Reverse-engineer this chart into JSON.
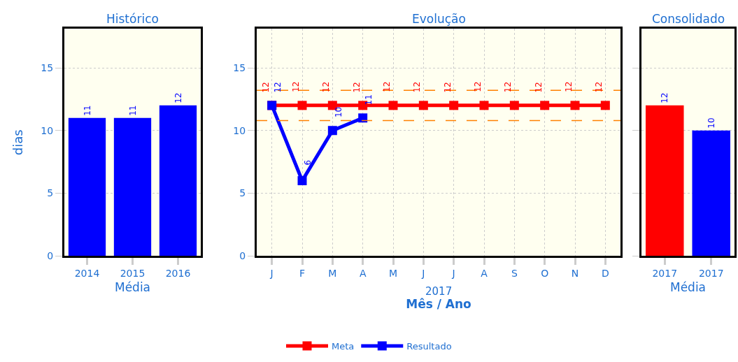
{
  "chart_data": [
    {
      "type": "bar",
      "title": "Histórico",
      "xlabel": "Média",
      "ylabel": "dias",
      "categories": [
        "2014",
        "2015",
        "2016"
      ],
      "values": [
        11,
        11,
        12
      ],
      "color": "#0000ff",
      "ylim": [
        0,
        18.1
      ],
      "yticks": [
        0,
        5,
        10,
        15
      ],
      "grid": "y",
      "data_labels": true
    },
    {
      "type": "line",
      "title": "Evolução",
      "xlabel": "Mês / Ano",
      "annotations": [
        "2017"
      ],
      "categories": [
        "J",
        "F",
        "M",
        "A",
        "M",
        "J",
        "J",
        "A",
        "S",
        "O",
        "N",
        "D"
      ],
      "series": [
        {
          "name": "Meta",
          "color": "#ff0000",
          "values": [
            12,
            12,
            12,
            12,
            12,
            12,
            12,
            12,
            12,
            12,
            12,
            12
          ]
        },
        {
          "name": "Resultado",
          "color": "#0000ff",
          "values": [
            12,
            6,
            10,
            11,
            null,
            null,
            null,
            null,
            null,
            null,
            null,
            null
          ]
        }
      ],
      "ylim": [
        0,
        18.1
      ],
      "yticks": [
        0,
        5,
        10,
        15
      ],
      "grid": true,
      "marker": "square",
      "line_style": "solid",
      "data_labels": true,
      "legend": "bottom",
      "ref_lines": [
        {
          "axis": "y",
          "value": 13.2,
          "color": "#ff8000",
          "line_style": "dashed"
        },
        {
          "axis": "y",
          "value": 10.8,
          "color": "#ff8000",
          "line_style": "dashed"
        }
      ]
    },
    {
      "type": "bar",
      "title": "Consolidado",
      "xlabel": "Média",
      "categories": [
        "2017",
        "2017"
      ],
      "values": [
        12,
        10
      ],
      "colors": [
        "#ff0000",
        "#0000ff"
      ],
      "ylim": [
        0,
        18.1
      ],
      "yticks": [
        0,
        5,
        10,
        15
      ],
      "grid": "y",
      "data_labels": true,
      "tick_labels": "x"
    }
  ]
}
